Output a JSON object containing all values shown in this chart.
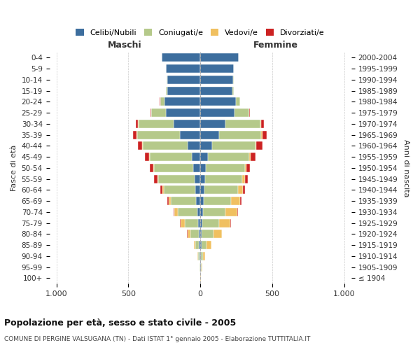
{
  "age_groups": [
    "100+",
    "95-99",
    "90-94",
    "85-89",
    "80-84",
    "75-79",
    "70-74",
    "65-69",
    "60-64",
    "55-59",
    "50-54",
    "45-49",
    "40-44",
    "35-39",
    "30-34",
    "25-29",
    "20-24",
    "15-19",
    "10-14",
    "5-9",
    "0-4"
  ],
  "birth_years": [
    "≤ 1904",
    "1905-1909",
    "1910-1914",
    "1915-1919",
    "1920-1924",
    "1925-1929",
    "1930-1934",
    "1935-1939",
    "1940-1944",
    "1945-1949",
    "1950-1954",
    "1955-1959",
    "1960-1964",
    "1965-1969",
    "1970-1974",
    "1975-1979",
    "1980-1984",
    "1985-1989",
    "1990-1994",
    "1995-1999",
    "2000-2004"
  ],
  "males": {
    "celibi": [
      0,
      2,
      5,
      10,
      10,
      15,
      20,
      30,
      35,
      40,
      50,
      60,
      90,
      140,
      185,
      240,
      250,
      230,
      230,
      240,
      270
    ],
    "coniugati": [
      0,
      3,
      10,
      25,
      60,
      95,
      135,
      175,
      220,
      255,
      270,
      290,
      310,
      300,
      245,
      100,
      30,
      10,
      5,
      0,
      0
    ],
    "vedovi": [
      0,
      2,
      5,
      10,
      20,
      25,
      25,
      15,
      10,
      5,
      5,
      5,
      5,
      5,
      5,
      0,
      0,
      0,
      0,
      0,
      0
    ],
    "divorziati": [
      0,
      0,
      0,
      0,
      2,
      5,
      5,
      10,
      15,
      20,
      25,
      30,
      30,
      25,
      15,
      5,
      2,
      0,
      0,
      0,
      0
    ]
  },
  "females": {
    "nubili": [
      0,
      2,
      5,
      10,
      10,
      15,
      20,
      25,
      30,
      35,
      40,
      55,
      80,
      130,
      175,
      240,
      245,
      225,
      230,
      235,
      265
    ],
    "coniugate": [
      0,
      5,
      15,
      35,
      80,
      115,
      155,
      190,
      230,
      255,
      270,
      285,
      305,
      295,
      245,
      100,
      30,
      10,
      5,
      0,
      0
    ],
    "vedove": [
      2,
      5,
      15,
      30,
      60,
      80,
      80,
      60,
      35,
      20,
      10,
      10,
      5,
      5,
      5,
      0,
      0,
      0,
      0,
      0,
      0
    ],
    "divorziate": [
      0,
      0,
      0,
      0,
      2,
      5,
      5,
      10,
      15,
      20,
      25,
      35,
      40,
      30,
      15,
      5,
      2,
      0,
      0,
      0,
      0
    ]
  },
  "colors": {
    "celibi": "#3d6e9e",
    "coniugati": "#b5c98a",
    "vedovi": "#f0c060",
    "divorziati": "#cc2222"
  },
  "xlim": 1050,
  "title": "Popolazione per età, sesso e stato civile - 2005",
  "subtitle": "COMUNE DI PERGINE VALSUGANA (TN) - Dati ISTAT 1° gennaio 2005 - Elaborazione TUTTITALIA.IT",
  "ylabel_left": "Fasce di età",
  "ylabel_right": "Anni di nascita",
  "xlabel_left": "Maschi",
  "xlabel_right": "Femmine"
}
